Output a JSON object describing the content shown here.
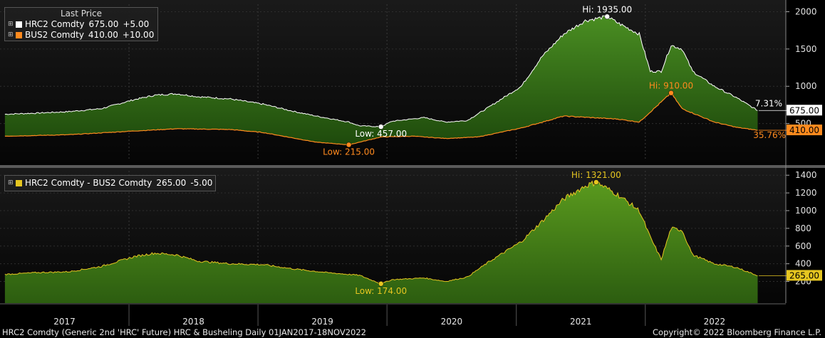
{
  "chart_data": [
    {
      "type": "area",
      "title": "Last Price",
      "series": [
        {
          "name": "HRC2 Comdty",
          "last": "675.00",
          "change": "+5.00",
          "color": "#ffffff",
          "x": [
            "2017-01",
            "2017-04",
            "2017-07",
            "2017-10",
            "2018-01",
            "2018-03",
            "2018-05",
            "2018-07",
            "2018-10",
            "2019-01",
            "2019-04",
            "2019-06",
            "2019-09",
            "2019-10",
            "2019-12",
            "2020-01",
            "2020-04",
            "2020-06",
            "2020-08",
            "2020-10",
            "2021-01",
            "2021-03",
            "2021-05",
            "2021-07",
            "2021-09",
            "2021-10",
            "2021-12",
            "2022-01",
            "2022-02",
            "2022-03",
            "2022-04",
            "2022-05",
            "2022-07",
            "2022-09",
            "2022-11"
          ],
          "values": [
            625,
            640,
            660,
            700,
            820,
            880,
            900,
            860,
            830,
            760,
            660,
            600,
            520,
            470,
            457,
            530,
            580,
            520,
            540,
            720,
            1000,
            1400,
            1700,
            1880,
            1935,
            1850,
            1700,
            1200,
            1200,
            1550,
            1500,
            1200,
            1000,
            850,
            675
          ]
        },
        {
          "name": "BUS2 Comdty",
          "last": "410.00",
          "change": "+10.00",
          "color": "#ff8a1e",
          "x": [
            "2017-01",
            "2017-07",
            "2018-01",
            "2018-05",
            "2018-10",
            "2019-01",
            "2019-06",
            "2019-09",
            "2019-12",
            "2020-03",
            "2020-06",
            "2020-09",
            "2021-01",
            "2021-05",
            "2021-10",
            "2021-12",
            "2022-03",
            "2022-04",
            "2022-07",
            "2022-09",
            "2022-11"
          ],
          "values": [
            330,
            350,
            400,
            430,
            420,
            380,
            250,
            215,
            320,
            330,
            300,
            320,
            440,
            600,
            560,
            520,
            910,
            700,
            520,
            450,
            410
          ]
        }
      ],
      "annotations": [
        {
          "label": "Hi: 1935.00",
          "series": "HRC2 Comdty",
          "x": "2021-09",
          "y": 1935
        },
        {
          "label": "Low: 457.00",
          "series": "HRC2 Comdty",
          "x": "2019-12",
          "y": 457
        },
        {
          "label": "Hi: 910.00",
          "series": "BUS2 Comdty",
          "x": "2022-03",
          "y": 910
        },
        {
          "label": "Low: 215.00",
          "series": "BUS2 Comdty",
          "x": "2019-09",
          "y": 215
        }
      ],
      "right_labels": [
        "7.31%",
        "675.00",
        "410.00",
        "35.76%"
      ],
      "yticks": [
        500,
        1000,
        1500,
        2000
      ],
      "ylim": [
        0,
        2100
      ]
    },
    {
      "type": "area",
      "series": [
        {
          "name": "HRC2 Comdty - BUS2 Comdty",
          "last": "265.00",
          "change": "-5.00",
          "color": "#e6c620",
          "x": [
            "2017-01",
            "2017-04",
            "2017-07",
            "2017-10",
            "2018-01",
            "2018-03",
            "2018-05",
            "2018-07",
            "2018-10",
            "2019-01",
            "2019-04",
            "2019-07",
            "2019-10",
            "2019-12",
            "2020-01",
            "2020-04",
            "2020-06",
            "2020-08",
            "2020-10",
            "2021-01",
            "2021-03",
            "2021-05",
            "2021-07",
            "2021-08",
            "2021-10",
            "2021-12",
            "2022-01",
            "2022-02",
            "2022-03",
            "2022-04",
            "2022-05",
            "2022-07",
            "2022-09",
            "2022-11"
          ],
          "values": [
            280,
            300,
            310,
            370,
            480,
            520,
            500,
            430,
            400,
            390,
            340,
            300,
            270,
            174,
            220,
            240,
            200,
            250,
            420,
            650,
            880,
            1130,
            1280,
            1321,
            1180,
            1000,
            700,
            450,
            800,
            780,
            500,
            400,
            360,
            265
          ]
        }
      ],
      "annotations": [
        {
          "label": "Hi: 1321.00",
          "x": "2021-08",
          "y": 1321
        },
        {
          "label": "Low: 174.00",
          "x": "2019-12",
          "y": 174
        }
      ],
      "right_labels": [
        "265.00"
      ],
      "yticks": [
        200,
        400,
        600,
        800,
        1000,
        1200,
        1400
      ],
      "ylim": [
        100,
        1450
      ]
    }
  ],
  "x_axis": {
    "start": "2017-01-01",
    "end": "2022-11-18",
    "year_labels": [
      "2017",
      "2018",
      "2019",
      "2020",
      "2021",
      "2022"
    ]
  },
  "footer": {
    "left": "HRC2 Comdty (Generic 2nd 'HRC' Future) HRC & Busheling  Daily 01JAN2017-18NOV2022",
    "right": "Copyright© 2022 Bloomberg Finance L.P."
  },
  "colors": {
    "area_green": "#3d7a1a",
    "area_green_dark": "#1f4a0c",
    "hrc_line": "#ffffff",
    "bus_line": "#ff8a1e",
    "spread_line": "#e6c620",
    "background": "#000000"
  }
}
